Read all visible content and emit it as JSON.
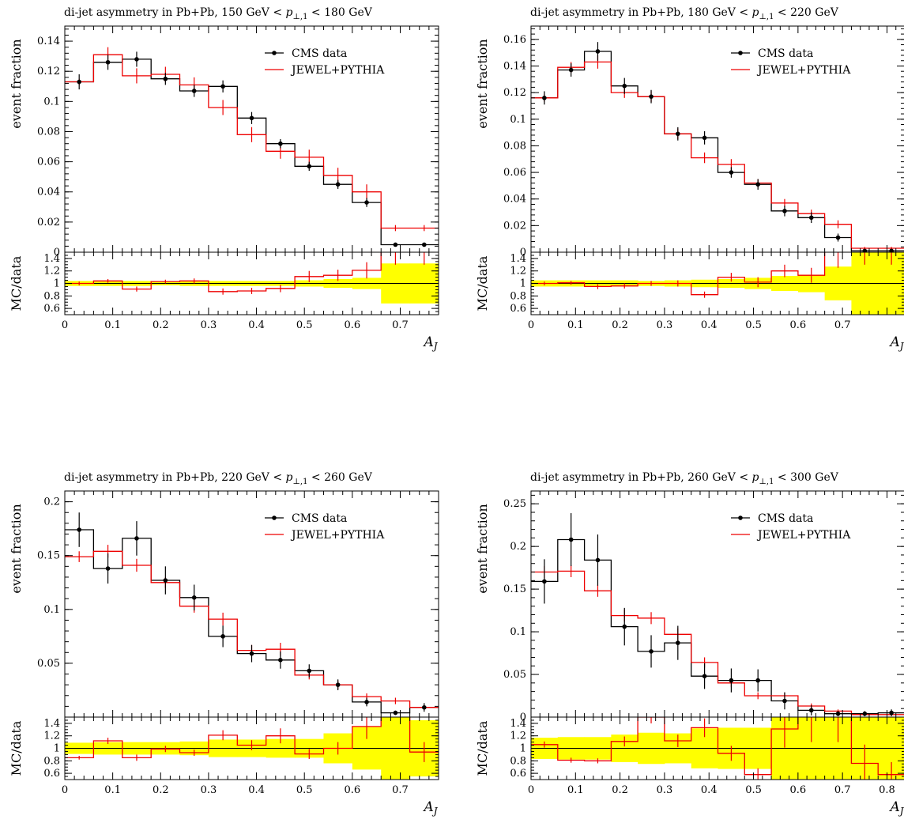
{
  "figure": {
    "background": "#ffffff"
  },
  "colors": {
    "data": "#000000",
    "mc": "#ee0000",
    "band": "#ffff00",
    "refline": "#000000"
  },
  "chart_data": [
    {
      "type": "line",
      "title": "di-jet asymmetry in Pb+Pb, 150 GeV < p⊥,1 < 180 GeV",
      "title_parts": [
        "di-jet asymmetry in Pb+Pb, 150 GeV < ",
        "p",
        "⊥,1",
        " < 180 GeV"
      ],
      "xlabel": "A",
      "xlabel_sub": "J",
      "ylabel": "event fraction",
      "ratio_ylabel": "MC/data",
      "xlim": [
        0,
        0.78
      ],
      "ylim": [
        0,
        0.15
      ],
      "ratio_ylim": [
        0.5,
        1.5
      ],
      "xticks": [
        0,
        0.1,
        0.2,
        0.3,
        0.4,
        0.5,
        0.6,
        0.7
      ],
      "xtick_labels": [
        "0",
        "0.1",
        "0.2",
        "0.3",
        "0.4",
        "0.5",
        "0.6",
        "0.7"
      ],
      "yticks": [
        0,
        0.02,
        0.04,
        0.06,
        0.08,
        0.1,
        0.12,
        0.14
      ],
      "ytick_labels": [
        "0",
        "0.02",
        "0.04",
        "0.06",
        "0.08",
        "0.1",
        "0.12",
        "0.14"
      ],
      "ratio_yticks": [
        0.6,
        0.8,
        1,
        1.2,
        1.4
      ],
      "ratio_ytick_labels": [
        "0.6",
        "0.8",
        "1",
        "1.2",
        "1.4"
      ],
      "legend": [
        "CMS data",
        "JEWEL+PYTHIA"
      ],
      "legend_position": "top-right",
      "bin_edges": [
        0,
        0.06,
        0.12,
        0.18,
        0.24,
        0.3,
        0.36,
        0.42,
        0.48,
        0.54,
        0.6,
        0.66,
        0.72,
        0.78
      ],
      "series": [
        {
          "name": "CMS data",
          "values": [
            0.113,
            0.126,
            0.128,
            0.115,
            0.107,
            0.11,
            0.089,
            0.072,
            0.057,
            0.045,
            0.033,
            0.005,
            0.005
          ],
          "errors": [
            0.005,
            0.005,
            0.005,
            0.004,
            0.004,
            0.004,
            0.004,
            0.003,
            0.003,
            0.003,
            0.003,
            0.001,
            0.001
          ]
        },
        {
          "name": "JEWEL+PYTHIA",
          "values": [
            0.113,
            0.131,
            0.117,
            0.118,
            0.111,
            0.096,
            0.078,
            0.067,
            0.063,
            0.051,
            0.04,
            0.016,
            0.016
          ],
          "errors": [
            0.002,
            0.005,
            0.005,
            0.005,
            0.005,
            0.005,
            0.005,
            0.005,
            0.005,
            0.005,
            0.005,
            0.002,
            0.002
          ]
        }
      ],
      "ratio": {
        "values": [
          1.0,
          1.04,
          0.91,
          1.03,
          1.04,
          0.87,
          0.88,
          0.92,
          1.11,
          1.13,
          1.21,
          1.6,
          1.6
        ],
        "errors": [
          0.03,
          0.03,
          0.04,
          0.03,
          0.04,
          0.05,
          0.05,
          0.06,
          0.09,
          0.09,
          0.13,
          0.3,
          0.3
        ],
        "band": [
          0.04,
          0.04,
          0.04,
          0.03,
          0.04,
          0.04,
          0.04,
          0.04,
          0.05,
          0.07,
          0.09,
          0.32,
          0.32
        ]
      }
    },
    {
      "type": "line",
      "title": "di-jet asymmetry in Pb+Pb, 180 GeV < p⊥,1 < 220 GeV",
      "title_parts": [
        "di-jet asymmetry in Pb+Pb, 180 GeV < ",
        "p",
        "⊥,1",
        " < 220 GeV"
      ],
      "xlabel": "A",
      "xlabel_sub": "J",
      "ylabel": "event fraction",
      "ratio_ylabel": "MC/data",
      "xlim": [
        0,
        0.84
      ],
      "ylim": [
        0,
        0.17
      ],
      "ratio_ylim": [
        0.5,
        1.5
      ],
      "xticks": [
        0,
        0.1,
        0.2,
        0.3,
        0.4,
        0.5,
        0.6,
        0.7
      ],
      "xtick_labels": [
        "0",
        "0.1",
        "0.2",
        "0.3",
        "0.4",
        "0.5",
        "0.6",
        "0.7"
      ],
      "yticks": [
        0,
        0.02,
        0.04,
        0.06,
        0.08,
        0.1,
        0.12,
        0.14,
        0.16
      ],
      "ytick_labels": [
        "0",
        "0.02",
        "0.04",
        "0.06",
        "0.08",
        "0.1",
        "0.12",
        "0.14",
        "0.16"
      ],
      "ratio_yticks": [
        0.6,
        0.8,
        1,
        1.2,
        1.4
      ],
      "ratio_ytick_labels": [
        "0.6",
        "0.8",
        "1",
        "1.2",
        "1.4"
      ],
      "legend": [
        "CMS data",
        "JEWEL+PYTHIA"
      ],
      "legend_position": "top-right",
      "bin_edges": [
        0,
        0.06,
        0.12,
        0.18,
        0.24,
        0.3,
        0.36,
        0.42,
        0.48,
        0.54,
        0.6,
        0.66,
        0.72,
        0.78,
        0.84
      ],
      "series": [
        {
          "name": "CMS data",
          "values": [
            0.116,
            0.137,
            0.151,
            0.125,
            0.117,
            0.089,
            0.086,
            0.06,
            0.051,
            0.031,
            0.026,
            0.011,
            0.001,
            0.001
          ],
          "errors": [
            0.005,
            0.005,
            0.007,
            0.006,
            0.005,
            0.005,
            0.005,
            0.004,
            0.004,
            0.004,
            0.004,
            0.003,
            0.001,
            0.001
          ]
        },
        {
          "name": "JEWEL+PYTHIA",
          "values": [
            0.116,
            0.139,
            0.143,
            0.12,
            0.117,
            0.089,
            0.071,
            0.066,
            0.052,
            0.037,
            0.029,
            0.021,
            0.003,
            0.003
          ],
          "errors": [
            0.003,
            0.004,
            0.005,
            0.004,
            0.004,
            0.004,
            0.004,
            0.004,
            0.003,
            0.003,
            0.003,
            0.003,
            0.001,
            0.001
          ]
        }
      ],
      "ratio": {
        "values": [
          1.0,
          1.01,
          0.95,
          0.96,
          1.0,
          1.0,
          0.82,
          1.1,
          1.02,
          1.2,
          1.13,
          1.55,
          1.6,
          1.6
        ],
        "errors": [
          0.03,
          0.03,
          0.04,
          0.04,
          0.04,
          0.05,
          0.05,
          0.07,
          0.08,
          0.1,
          0.12,
          0.3,
          0.3,
          0.3
        ],
        "band": [
          0.05,
          0.05,
          0.05,
          0.05,
          0.04,
          0.05,
          0.06,
          0.07,
          0.09,
          0.12,
          0.14,
          0.27,
          0.5,
          0.5
        ]
      }
    },
    {
      "type": "line",
      "title": "di-jet asymmetry in Pb+Pb, 220 GeV < p⊥,1 < 260 GeV",
      "title_parts": [
        "di-jet asymmetry in Pb+Pb, 220 GeV < ",
        "p",
        "⊥,1",
        " < 260 GeV"
      ],
      "xlabel": "A",
      "xlabel_sub": "J",
      "ylabel": "event fraction",
      "ratio_ylabel": "MC/data",
      "xlim": [
        0,
        0.78
      ],
      "ylim": [
        0,
        0.21
      ],
      "ratio_ylim": [
        0.5,
        1.5
      ],
      "xticks": [
        0,
        0.1,
        0.2,
        0.3,
        0.4,
        0.5,
        0.6,
        0.7
      ],
      "xtick_labels": [
        "0",
        "0.1",
        "0.2",
        "0.3",
        "0.4",
        "0.5",
        "0.6",
        "0.7"
      ],
      "yticks": [
        0.05,
        0.1,
        0.15,
        0.2
      ],
      "ytick_labels": [
        "0.05",
        "0.1",
        "0.15",
        "0.2"
      ],
      "ratio_yticks": [
        0.6,
        0.8,
        1,
        1.2,
        1.4
      ],
      "ratio_ytick_labels": [
        "0.6",
        "0.8",
        "1",
        "1.2",
        "1.4"
      ],
      "legend": [
        "CMS data",
        "JEWEL+PYTHIA"
      ],
      "legend_position": "top-right",
      "bin_edges": [
        0,
        0.06,
        0.12,
        0.18,
        0.24,
        0.3,
        0.36,
        0.42,
        0.48,
        0.54,
        0.6,
        0.66,
        0.72,
        0.78
      ],
      "series": [
        {
          "name": "CMS data",
          "values": [
            0.174,
            0.138,
            0.166,
            0.127,
            0.111,
            0.075,
            0.059,
            0.053,
            0.043,
            0.03,
            0.014,
            0.004,
            0.009
          ],
          "errors": [
            0.016,
            0.014,
            0.016,
            0.013,
            0.012,
            0.01,
            0.008,
            0.008,
            0.006,
            0.005,
            0.004,
            0.002,
            0.004
          ]
        },
        {
          "name": "JEWEL+PYTHIA",
          "values": [
            0.149,
            0.154,
            0.141,
            0.125,
            0.103,
            0.091,
            0.062,
            0.063,
            0.039,
            0.03,
            0.019,
            0.015,
            0.009
          ],
          "errors": [
            0.005,
            0.006,
            0.006,
            0.005,
            0.006,
            0.006,
            0.005,
            0.006,
            0.004,
            0.004,
            0.003,
            0.003,
            0.002
          ]
        }
      ],
      "ratio": {
        "values": [
          0.85,
          1.12,
          0.85,
          0.99,
          0.93,
          1.21,
          1.05,
          1.2,
          0.91,
          1.0,
          1.35,
          3.0,
          0.94
        ],
        "errors": [
          0.03,
          0.05,
          0.05,
          0.05,
          0.05,
          0.08,
          0.08,
          0.12,
          0.08,
          0.1,
          0.2,
          1.0,
          0.16
        ],
        "band": [
          0.09,
          0.1,
          0.1,
          0.1,
          0.11,
          0.14,
          0.14,
          0.15,
          0.15,
          0.24,
          0.34,
          0.6,
          0.45
        ]
      }
    },
    {
      "type": "line",
      "title": "di-jet asymmetry in Pb+Pb, 260 GeV < p⊥,1 < 300 GeV",
      "title_parts": [
        "di-jet asymmetry in Pb+Pb, 260 GeV < ",
        "p",
        "⊥,1",
        " < 300 GeV"
      ],
      "xlabel": "A",
      "xlabel_sub": "J",
      "ylabel": "event fraction",
      "ratio_ylabel": "MC/data",
      "xlim": [
        0,
        0.84
      ],
      "ylim": [
        0,
        0.265
      ],
      "ratio_ylim": [
        0.5,
        1.5
      ],
      "xticks": [
        0,
        0.1,
        0.2,
        0.3,
        0.4,
        0.5,
        0.6,
        0.7,
        0.8
      ],
      "xtick_labels": [
        "0",
        "0.1",
        "0.2",
        "0.3",
        "0.4",
        "0.5",
        "0.6",
        "0.7",
        "0.8"
      ],
      "yticks": [
        0,
        0.05,
        0.1,
        0.15,
        0.2,
        0.25
      ],
      "ytick_labels": [
        "0",
        "0.05",
        "0.1",
        "0.15",
        "0.2",
        "0.25"
      ],
      "ratio_yticks": [
        0.6,
        0.8,
        1,
        1.2,
        1.4
      ],
      "ratio_ytick_labels": [
        "0.6",
        "0.8",
        "1",
        "1.2",
        "1.4"
      ],
      "legend": [
        "CMS data",
        "JEWEL+PYTHIA"
      ],
      "legend_position": "top-right",
      "bin_edges": [
        0,
        0.06,
        0.12,
        0.18,
        0.24,
        0.3,
        0.36,
        0.42,
        0.48,
        0.54,
        0.6,
        0.66,
        0.72,
        0.78,
        0.84
      ],
      "series": [
        {
          "name": "CMS data",
          "values": [
            0.159,
            0.208,
            0.184,
            0.106,
            0.077,
            0.087,
            0.048,
            0.043,
            0.043,
            0.019,
            0.008,
            0.004,
            0.004,
            0.005
          ],
          "errors": [
            0.026,
            0.031,
            0.03,
            0.022,
            0.019,
            0.02,
            0.015,
            0.014,
            0.013,
            0.01,
            0.006,
            0.003,
            0.003,
            0.004
          ]
        },
        {
          "name": "JEWEL+PYTHIA",
          "values": [
            0.17,
            0.171,
            0.148,
            0.119,
            0.116,
            0.097,
            0.064,
            0.04,
            0.025,
            0.025,
            0.013,
            0.007,
            0.003,
            0.003
          ],
          "errors": [
            0.007,
            0.007,
            0.007,
            0.007,
            0.007,
            0.007,
            0.006,
            0.005,
            0.004,
            0.004,
            0.003,
            0.002,
            0.001,
            0.001
          ]
        }
      ],
      "ratio": {
        "values": [
          1.06,
          0.81,
          0.8,
          1.11,
          1.5,
          1.12,
          1.33,
          0.92,
          0.58,
          1.31,
          1.6,
          1.6,
          0.76,
          0.58
        ],
        "errors": [
          0.05,
          0.04,
          0.04,
          0.08,
          0.1,
          0.1,
          0.15,
          0.12,
          0.1,
          0.3,
          0.5,
          0.5,
          0.3,
          0.2
        ],
        "band": [
          0.17,
          0.18,
          0.18,
          0.22,
          0.25,
          0.24,
          0.32,
          0.33,
          0.33,
          0.6,
          0.6,
          0.6,
          0.6,
          0.6
        ]
      }
    }
  ]
}
